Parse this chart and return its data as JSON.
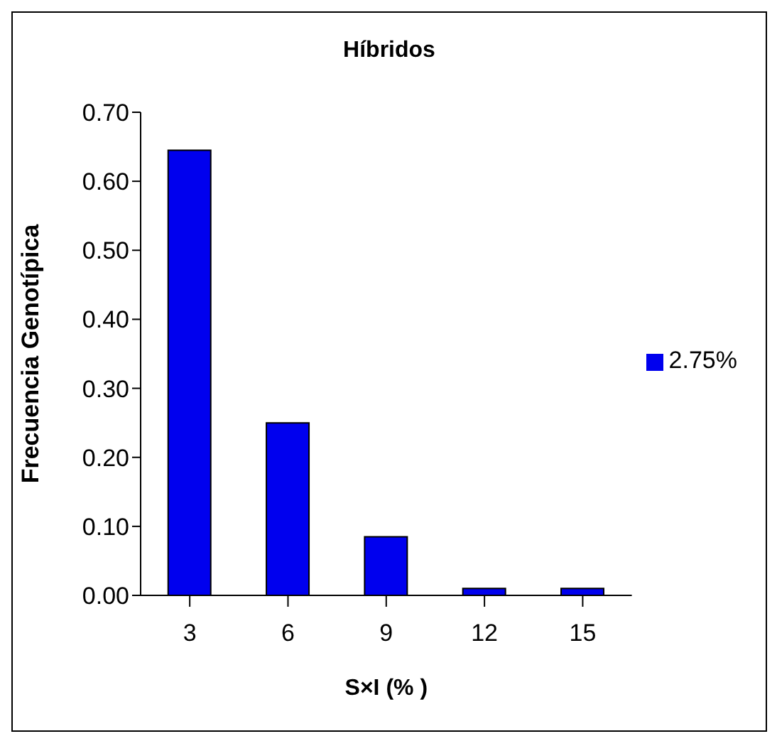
{
  "chart_data": {
    "type": "bar",
    "title": "Híbridos",
    "xlabel": "S×I (% )",
    "ylabel": "Frecuencia Genotípica",
    "categories": [
      "3",
      "6",
      "9",
      "12",
      "15"
    ],
    "series": [
      {
        "name": "2.75%",
        "color": "#0000ee",
        "values": [
          0.645,
          0.25,
          0.085,
          0.01,
          0.01
        ]
      }
    ],
    "ylim": [
      0,
      0.7
    ],
    "yticks": [
      {
        "value": 0,
        "label": "0.00"
      },
      {
        "value": 0.1,
        "label": "0.10"
      },
      {
        "value": 0.2,
        "label": "0.20"
      },
      {
        "value": 0.3,
        "label": "0.30"
      },
      {
        "value": 0.4,
        "label": "0.40"
      },
      {
        "value": 0.5,
        "label": "0.50"
      },
      {
        "value": 0.6,
        "label": "0.60"
      },
      {
        "value": 0.7,
        "label": "0.70"
      }
    ],
    "legend": "right",
    "grid": false
  }
}
